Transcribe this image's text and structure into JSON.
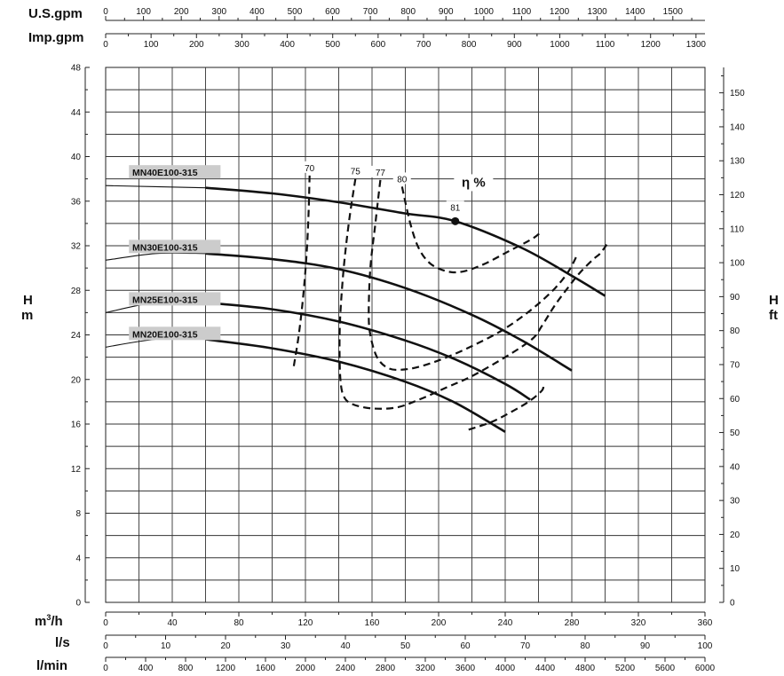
{
  "chart_data": {
    "type": "line",
    "units": {
      "usgpm": "U.S.gpm",
      "impgpm": "Imp.gpm",
      "m3h": "m³/h",
      "ls": "l/s",
      "lmin": "l/min",
      "h_m": "H\nm",
      "h_ft": "H\nft"
    },
    "x_m3h_ticks": [
      "0",
      "40",
      "80",
      "120",
      "160",
      "200",
      "240",
      "280",
      "320",
      "360"
    ],
    "x_ls_ticks": [
      "0",
      "10",
      "20",
      "30",
      "40",
      "50",
      "60",
      "70",
      "80",
      "90",
      "100"
    ],
    "x_lmin_ticks": [
      "0",
      "400",
      "800",
      "1200",
      "1600",
      "2000",
      "2400",
      "2800",
      "3200",
      "3600",
      "4000",
      "4400",
      "4800",
      "5200",
      "5600",
      "6000"
    ],
    "x_usgpm_ticks": [
      "0",
      "100",
      "200",
      "300",
      "400",
      "500",
      "600",
      "700",
      "800",
      "900",
      "1000",
      "1100",
      "1200",
      "1300",
      "1400",
      "1500"
    ],
    "x_impgpm_ticks": [
      "0",
      "100",
      "200",
      "300",
      "400",
      "500",
      "600",
      "700",
      "800",
      "900",
      "1000",
      "1100",
      "1200",
      "1300"
    ],
    "y_m_ticks": [
      "0",
      "4",
      "8",
      "12",
      "16",
      "20",
      "24",
      "28",
      "32",
      "36",
      "40",
      "44",
      "48"
    ],
    "y_ft_ticks": [
      "0",
      "10",
      "20",
      "30",
      "40",
      "50",
      "60",
      "70",
      "80",
      "90",
      "100",
      "110",
      "120",
      "130",
      "140",
      "150"
    ],
    "xlim_m3h": [
      0,
      360
    ],
    "ylim_m": [
      0,
      48
    ],
    "grid": true,
    "series": [
      {
        "name": "MN40E100-315",
        "points": [
          [
            0,
            37.4
          ],
          [
            60,
            37.2
          ],
          [
            100,
            36.7
          ],
          [
            140,
            35.9
          ],
          [
            180,
            34.9
          ],
          [
            210,
            34.2
          ],
          [
            250,
            31.8
          ],
          [
            280,
            29.3
          ],
          [
            300,
            27.5
          ]
        ]
      },
      {
        "name": "MN30E100-315",
        "points": [
          [
            0,
            30.7
          ],
          [
            30,
            31.3
          ],
          [
            60,
            31.3
          ],
          [
            100,
            30.8
          ],
          [
            140,
            29.9
          ],
          [
            180,
            28.2
          ],
          [
            220,
            25.8
          ],
          [
            250,
            23.5
          ],
          [
            280,
            20.8
          ]
        ]
      },
      {
        "name": "MN25E100-315",
        "points": [
          [
            0,
            26.0
          ],
          [
            30,
            26.9
          ],
          [
            60,
            26.9
          ],
          [
            100,
            26.3
          ],
          [
            140,
            25.2
          ],
          [
            180,
            23.5
          ],
          [
            210,
            21.8
          ],
          [
            240,
            19.6
          ],
          [
            255,
            18.2
          ]
        ]
      },
      {
        "name": "MN20E100-315",
        "points": [
          [
            0,
            22.9
          ],
          [
            30,
            23.6
          ],
          [
            60,
            23.6
          ],
          [
            100,
            22.8
          ],
          [
            140,
            21.6
          ],
          [
            180,
            19.8
          ],
          [
            210,
            17.9
          ],
          [
            240,
            15.3
          ]
        ]
      }
    ],
    "efficiency": {
      "label": "η %",
      "curves": [
        {
          "value": "70",
          "points": [
            [
              113,
              21.2
            ],
            [
              116,
              24.0
            ],
            [
              119,
              28.0
            ],
            [
              121,
              32.0
            ],
            [
              122,
              35.5
            ],
            [
              122.5,
              38.3
            ]
          ]
        },
        {
          "value": "75",
          "points": [
            [
              150,
              38.0
            ],
            [
              146,
              34.0
            ],
            [
              143,
              30.0
            ],
            [
              141,
              26.0
            ],
            [
              140.5,
              23.0
            ],
            [
              141,
              20.0
            ],
            [
              143,
              18.5
            ],
            [
              148,
              17.8
            ],
            [
              160,
              17.4
            ],
            [
              175,
              17.5
            ],
            [
              190,
              18.3
            ],
            [
              205,
              19.3
            ],
            [
              220,
              20.3
            ],
            [
              240,
              22.0
            ],
            [
              256,
              23.6
            ],
            [
              262,
              24.8
            ],
            [
              270,
              26.7
            ],
            [
              278,
              28.3
            ],
            [
              285,
              29.6
            ],
            [
              293,
              30.8
            ],
            [
              297,
              31.3
            ],
            [
              301,
              32.1
            ]
          ]
        },
        {
          "value": "77",
          "points": [
            [
              165,
              37.9
            ],
            [
              162,
              34.0
            ],
            [
              159,
              30.0
            ],
            [
              158,
              26.0
            ],
            [
              159,
              24.0
            ],
            [
              163,
              22.0
            ],
            [
              170,
              21.0
            ],
            [
              180,
              20.9
            ],
            [
              192,
              21.3
            ],
            [
              205,
              22.0
            ],
            [
              220,
              23.0
            ],
            [
              238,
              24.4
            ],
            [
              256,
              26.3
            ],
            [
              270,
              28.2
            ],
            [
              278,
              29.7
            ],
            [
              283,
              31.1
            ]
          ]
        },
        {
          "value": "80",
          "points": [
            [
              178,
              37.3
            ],
            [
              183,
              34.0
            ],
            [
              188,
              31.8
            ],
            [
              195,
              30.4
            ],
            [
              205,
              29.7
            ],
            [
              215,
              29.7
            ],
            [
              228,
              30.4
            ],
            [
              242,
              31.5
            ],
            [
              256,
              32.6
            ],
            [
              262,
              33.3
            ]
          ]
        },
        {
          "value": "",
          "points": [
            [
              218,
              15.5
            ],
            [
              232,
              16.2
            ],
            [
              245,
              17.2
            ],
            [
              255,
              18.1
            ],
            [
              262,
              19.0
            ],
            [
              263,
              19.5
            ]
          ]
        }
      ]
    },
    "bep": {
      "value": "81",
      "point": [
        210,
        34.2
      ]
    }
  }
}
